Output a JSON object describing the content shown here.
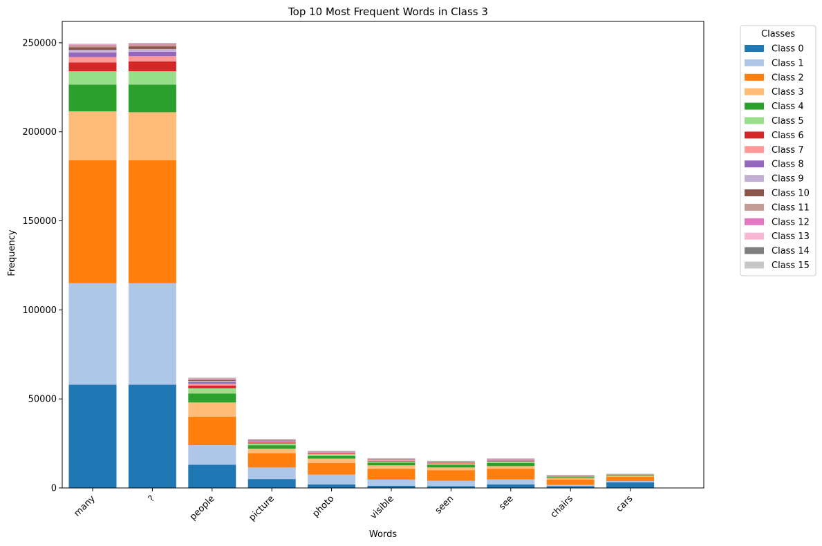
{
  "chart_data": {
    "type": "bar",
    "stacked": true,
    "title": "Top 10 Most Frequent Words in Class 3",
    "xlabel": "Words",
    "ylabel": "Frequency",
    "ylim": [
      0,
      262000
    ],
    "yticks": [
      0,
      50000,
      100000,
      150000,
      200000,
      250000
    ],
    "grid": false,
    "legend_title": "Classes",
    "legend_position": "outside-top-right",
    "categories": [
      "many",
      "?",
      "people",
      "picture",
      "photo",
      "visible",
      "seen",
      "see",
      "chairs",
      "cars"
    ],
    "series": [
      {
        "name": "Class 0",
        "color": "#1f77b4",
        "values": [
          58000,
          58000,
          13000,
          5000,
          2000,
          1200,
          1000,
          2000,
          1000,
          3200
        ]
      },
      {
        "name": "Class 1",
        "color": "#aec7e8",
        "values": [
          57000,
          57000,
          11000,
          6500,
          5500,
          3500,
          3000,
          2800,
          700,
          700
        ]
      },
      {
        "name": "Class 2",
        "color": "#ff7f0e",
        "values": [
          69000,
          69000,
          16000,
          8000,
          6500,
          6000,
          6000,
          6000,
          3000,
          2300
        ]
      },
      {
        "name": "Class 3",
        "color": "#ffbb78",
        "values": [
          27500,
          27000,
          8000,
          2500,
          2500,
          2000,
          1500,
          1500,
          800,
          600
        ]
      },
      {
        "name": "Class 4",
        "color": "#2ca02c",
        "values": [
          15000,
          15500,
          5000,
          2000,
          1500,
          1500,
          1300,
          1700,
          600,
          400
        ]
      },
      {
        "name": "Class 5",
        "color": "#98df8a",
        "values": [
          7500,
          7500,
          3000,
          1000,
          1000,
          700,
          600,
          700,
          200,
          300
        ]
      },
      {
        "name": "Class 6",
        "color": "#d62728",
        "values": [
          5000,
          5500,
          1500,
          500,
          300,
          300,
          300,
          300,
          100,
          50
        ]
      },
      {
        "name": "Class 7",
        "color": "#ff9896",
        "values": [
          3000,
          3000,
          1000,
          400,
          300,
          300,
          300,
          300,
          100,
          50
        ]
      },
      {
        "name": "Class 8",
        "color": "#9467bd",
        "values": [
          2500,
          2500,
          1000,
          400,
          300,
          300,
          300,
          300,
          100,
          50
        ]
      },
      {
        "name": "Class 9",
        "color": "#c5b0d5",
        "values": [
          1500,
          1500,
          600,
          300,
          200,
          200,
          200,
          200,
          50,
          50
        ]
      },
      {
        "name": "Class 10",
        "color": "#8c564b",
        "values": [
          1500,
          1500,
          500,
          300,
          200,
          200,
          200,
          200,
          300,
          50
        ]
      },
      {
        "name": "Class 11",
        "color": "#c49c94",
        "values": [
          1000,
          1000,
          500,
          200,
          150,
          150,
          150,
          150,
          50,
          50
        ]
      },
      {
        "name": "Class 12",
        "color": "#e377c2",
        "values": [
          300,
          300,
          300,
          100,
          100,
          100,
          100,
          200,
          50,
          50
        ]
      },
      {
        "name": "Class 13",
        "color": "#f7b6d2",
        "values": [
          300,
          300,
          200,
          100,
          100,
          100,
          100,
          100,
          50,
          50
        ]
      },
      {
        "name": "Class 14",
        "color": "#7f7f7f",
        "values": [
          200,
          200,
          200,
          100,
          100,
          100,
          100,
          100,
          50,
          50
        ]
      },
      {
        "name": "Class 15",
        "color": "#c7c7c7",
        "values": [
          200,
          200,
          200,
          100,
          100,
          100,
          100,
          100,
          50,
          50
        ]
      }
    ]
  }
}
